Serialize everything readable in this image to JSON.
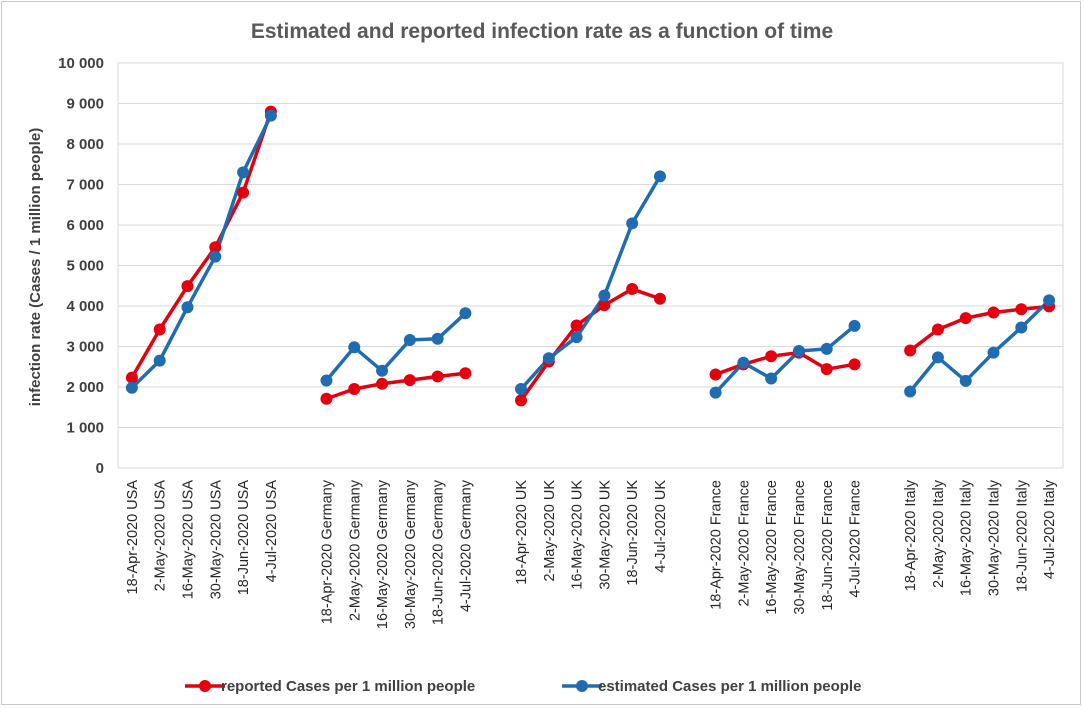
{
  "chart_data": {
    "type": "line",
    "title": "Estimated and reported infection rate as a function of time",
    "ylabel": "infection rate (Cases / 1 million people)",
    "xlabel": "",
    "ylim": [
      0,
      10000
    ],
    "yticks": [
      0,
      1000,
      2000,
      3000,
      4000,
      5000,
      6000,
      7000,
      8000,
      9000,
      10000
    ],
    "ytick_labels": [
      "0",
      "1 000",
      "2 000",
      "3 000",
      "4 000",
      "5 000",
      "6 000",
      "7 000",
      "8 000",
      "9 000",
      "10 000"
    ],
    "grid": true,
    "legend_position": "bottom",
    "groups": [
      {
        "country": "USA",
        "categories": [
          "18-Apr-2020 USA",
          "2-May-2020 USA",
          "16-May-2020 USA",
          "30-May-2020 USA",
          "18-Jun-2020 USA",
          "4-Jul-2020 USA"
        ],
        "reported": [
          2230,
          3420,
          4490,
          5450,
          6800,
          8800
        ],
        "estimated": [
          1980,
          2650,
          3970,
          5220,
          7300,
          8700
        ]
      },
      {
        "country": "Germany",
        "categories": [
          "18-Apr-2020 Germany",
          "2-May-2020 Germany",
          "16-May-2020 Germany",
          "30-May-2020 Germany",
          "18-Jun-2020 Germany",
          "4-Jul-2020 Germany"
        ],
        "reported": [
          1710,
          1950,
          2080,
          2170,
          2260,
          2340
        ],
        "estimated": [
          2160,
          2980,
          2400,
          3160,
          3190,
          3820
        ]
      },
      {
        "country": "UK",
        "categories": [
          "18-Apr-2020 UK",
          "2-May-2020 UK",
          "16-May-2020 UK",
          "30-May-2020 UK",
          "18-Jun-2020 UK",
          "4-Jul-2020 UK"
        ],
        "reported": [
          1670,
          2630,
          3520,
          4020,
          4420,
          4180
        ],
        "estimated": [
          1950,
          2710,
          3230,
          4260,
          6040,
          7200
        ]
      },
      {
        "country": "France",
        "categories": [
          "18-Apr-2020 France",
          "2-May-2020 France",
          "16-May-2020 France",
          "30-May-2020 France",
          "18-Jun-2020 France",
          "4-Jul-2020 France"
        ],
        "reported": [
          2310,
          2560,
          2760,
          2850,
          2440,
          2560
        ],
        "estimated": [
          1860,
          2600,
          2210,
          2890,
          2940,
          3510
        ]
      },
      {
        "country": "Italy",
        "categories": [
          "18-Apr-2020 Italy",
          "2-May-2020 Italy",
          "16-May-2020 Italy",
          "30-May-2020 Italy",
          "18-Jun-2020 Italy",
          "4-Jul-2020 Italy"
        ],
        "reported": [
          2900,
          3420,
          3700,
          3840,
          3920,
          3990
        ],
        "estimated": [
          1890,
          2730,
          2150,
          2850,
          3470,
          4140
        ]
      }
    ],
    "series": [
      {
        "key": "reported",
        "name": "reported Cases per 1 million people",
        "color": "#e3000f"
      },
      {
        "key": "estimated",
        "name": "estimated Cases per 1 million people",
        "color": "#1f6cb0"
      }
    ]
  }
}
